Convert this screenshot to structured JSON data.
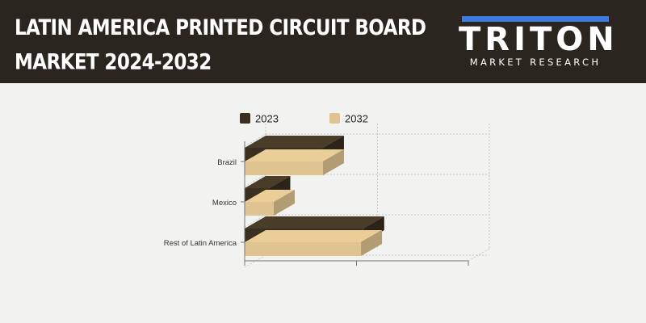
{
  "header": {
    "title_line1": "LATIN AMERICA PRINTED CIRCUIT BOARD",
    "title_line2": "MARKET 2024-2032",
    "logo_word": "TRITON",
    "logo_sub": "MARKET RESEARCH"
  },
  "colors": {
    "header_bg": "#2b2520",
    "logo_accent": "#3d7be0",
    "series_2023": "#3a3020",
    "series_2032": "#dfc390",
    "background": "#f2f2f0"
  },
  "chart_data": {
    "type": "bar",
    "orientation": "horizontal",
    "style": "3d",
    "categories": [
      "Brazil",
      "Mexico",
      "Rest of Latin America"
    ],
    "series": [
      {
        "name": "2023",
        "values": [
          3.5,
          1.1,
          5.3
        ]
      },
      {
        "name": "2032",
        "values": [
          3.5,
          1.3,
          5.2
        ]
      }
    ],
    "xlim": [
      0,
      10
    ],
    "x_tick_labels_shown": false,
    "grid": true,
    "legend": "top"
  }
}
